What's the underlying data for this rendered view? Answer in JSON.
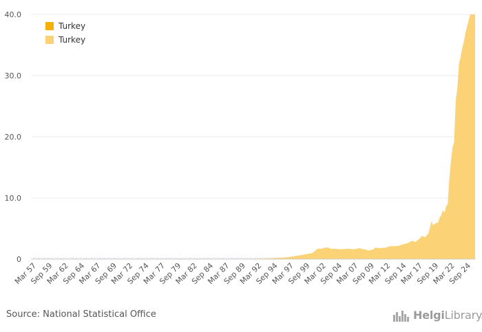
{
  "colors": {
    "series_dark": "#F5B00A",
    "series_light": "#FBD276",
    "grid": "#e8e8e8",
    "axis": "#cfcfcf"
  },
  "legend": [
    {
      "label": "Turkey",
      "color": "#F5B00A"
    },
    {
      "label": "Turkey",
      "color": "#FBD276"
    }
  ],
  "source": "Source: National Statistical Office",
  "brand": {
    "name_bold": "Helgi",
    "name_light": "Library.",
    "icon": "city-skyline-icon"
  },
  "chart_data": {
    "type": "area",
    "title": "",
    "xlabel": "",
    "ylabel": "",
    "ylim": [
      0,
      40
    ],
    "yticks": [
      {
        "value": 0,
        "label": "0"
      },
      {
        "value": 10,
        "label": "10.0"
      },
      {
        "value": 20,
        "label": "20.0"
      },
      {
        "value": 30,
        "label": "30.0"
      },
      {
        "value": 40,
        "label": "40.0"
      }
    ],
    "x_tick_labels": [
      "Mar 57",
      "Sep 59",
      "Mar 62",
      "Sep 64",
      "Mar 67",
      "Sep 69",
      "Mar 72",
      "Sep 74",
      "Mar 77",
      "Sep 79",
      "Mar 82",
      "Sep 84",
      "Mar 87",
      "Sep 89",
      "Mar 92",
      "Sep 94",
      "Mar 97",
      "Sep 99",
      "Mar 02",
      "Sep 04",
      "Mar 07",
      "Sep 09",
      "Mar 12",
      "Sep 14",
      "Mar 17",
      "Sep 19",
      "Mar 22",
      "Sep 24"
    ],
    "x_range": [
      1957.0,
      2025.75
    ],
    "series": [
      {
        "name": "Turkey",
        "points": [
          [
            1957.0,
            0.0
          ],
          [
            1980.0,
            0.01
          ],
          [
            1985.0,
            0.02
          ],
          [
            1990.0,
            0.05
          ],
          [
            1993.0,
            0.1
          ],
          [
            1995.0,
            0.2
          ],
          [
            1996.5,
            0.3
          ],
          [
            1997.5,
            0.45
          ],
          [
            1998.5,
            0.6
          ],
          [
            1999.5,
            0.8
          ],
          [
            2000.5,
            1.0
          ],
          [
            2001.0,
            1.4
          ],
          [
            2001.25,
            1.7
          ],
          [
            2002.0,
            1.7
          ],
          [
            2002.5,
            1.9
          ],
          [
            2003.0,
            1.9
          ],
          [
            2003.25,
            1.7
          ],
          [
            2004.0,
            1.7
          ],
          [
            2005.0,
            1.6
          ],
          [
            2006.0,
            1.7
          ],
          [
            2007.0,
            1.6
          ],
          [
            2007.75,
            1.8
          ],
          [
            2008.5,
            1.6
          ],
          [
            2009.0,
            1.5
          ],
          [
            2009.25,
            1.4
          ],
          [
            2010.0,
            1.6
          ],
          [
            2010.25,
            1.9
          ],
          [
            2011.0,
            1.8
          ],
          [
            2012.0,
            1.9
          ],
          [
            2012.5,
            2.1
          ],
          [
            2013.25,
            2.1
          ],
          [
            2014.0,
            2.2
          ],
          [
            2014.5,
            2.4
          ],
          [
            2015.25,
            2.6
          ],
          [
            2016.0,
            3.0
          ],
          [
            2016.5,
            2.8
          ],
          [
            2016.75,
            3.0
          ],
          [
            2017.25,
            3.5
          ],
          [
            2017.5,
            3.8
          ],
          [
            2018.0,
            3.6
          ],
          [
            2018.5,
            4.2
          ],
          [
            2018.75,
            5.2
          ],
          [
            2019.0,
            6.2
          ],
          [
            2019.25,
            5.5
          ],
          [
            2019.5,
            5.8
          ],
          [
            2020.0,
            6.0
          ],
          [
            2020.25,
            6.8
          ],
          [
            2020.5,
            7.2
          ],
          [
            2020.75,
            8.0
          ],
          [
            2021.0,
            7.6
          ],
          [
            2021.25,
            8.6
          ],
          [
            2021.5,
            9.0
          ],
          [
            2021.75,
            13.0
          ],
          [
            2022.0,
            16.0
          ],
          [
            2022.25,
            18.2
          ],
          [
            2022.5,
            19.2
          ],
          [
            2022.75,
            26.0
          ],
          [
            2023.0,
            28.0
          ],
          [
            2023.25,
            32.0
          ],
          [
            2023.5,
            33.0
          ],
          [
            2023.75,
            34.5
          ],
          [
            2024.0,
            35.5
          ],
          [
            2024.25,
            37.0
          ],
          [
            2024.5,
            38.0
          ],
          [
            2024.75,
            39.0
          ],
          [
            2025.0,
            40.0
          ],
          [
            2025.75,
            40.0
          ]
        ]
      }
    ],
    "legend_position": "top-left",
    "grid": true
  }
}
